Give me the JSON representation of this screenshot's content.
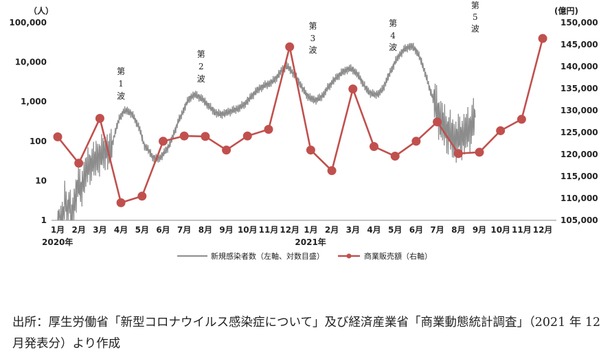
{
  "chart_data": {
    "type": "line",
    "left_unit": "（人）",
    "right_unit": "(億円)",
    "left_axis": {
      "scale": "log",
      "ticks": [
        "1",
        "10",
        "100",
        "1,000",
        "10,000",
        "100,000"
      ],
      "range": [
        1,
        100000
      ]
    },
    "right_axis": {
      "ticks": [
        "105,000",
        "110,000",
        "115,000",
        "120,000",
        "125,000",
        "130,000",
        "135,000",
        "140,000",
        "145,000",
        "150,000"
      ],
      "range": [
        105000,
        150000
      ]
    },
    "month_labels": [
      "1月",
      "2月",
      "3月",
      "4月",
      "5月",
      "6月",
      "7月",
      "8月",
      "9月",
      "10月",
      "11月",
      "12月",
      "1月",
      "2月",
      "3月",
      "4月",
      "5月",
      "6月",
      "7月",
      "8月",
      "9月",
      "10月",
      "11月",
      "12月"
    ],
    "year_labels": [
      {
        "month_index": 0,
        "label": "2020年"
      },
      {
        "month_index": 12,
        "label": "2021年"
      }
    ],
    "series": [
      {
        "name": "新規感染者数（左軸、対数目盛）",
        "axis": "left",
        "color": "#8c8c8c",
        "anchors": [
          [
            0,
            1
          ],
          [
            0.25,
            1
          ],
          [
            0.35,
            4
          ],
          [
            0.45,
            1.5
          ],
          [
            0.55,
            3
          ],
          [
            0.65,
            1
          ],
          [
            0.8,
            3
          ],
          [
            0.95,
            8
          ],
          [
            1.1,
            6
          ],
          [
            1.3,
            15
          ],
          [
            1.5,
            25
          ],
          [
            1.7,
            30
          ],
          [
            1.9,
            40
          ],
          [
            2.1,
            45
          ],
          [
            2.3,
            60
          ],
          [
            2.5,
            55
          ],
          [
            2.7,
            150
          ],
          [
            2.9,
            350
          ],
          [
            3.1,
            550
          ],
          [
            3.3,
            600
          ],
          [
            3.5,
            500
          ],
          [
            3.7,
            330
          ],
          [
            3.9,
            200
          ],
          [
            4.0,
            120
          ],
          [
            4.1,
            80
          ],
          [
            4.3,
            60
          ],
          [
            4.5,
            40
          ],
          [
            4.7,
            35
          ],
          [
            4.9,
            40
          ],
          [
            5.1,
            55
          ],
          [
            5.3,
            80
          ],
          [
            5.5,
            150
          ],
          [
            5.7,
            300
          ],
          [
            5.9,
            500
          ],
          [
            6.1,
            900
          ],
          [
            6.3,
            1300
          ],
          [
            6.5,
            1500
          ],
          [
            6.7,
            1350
          ],
          [
            6.9,
            1100
          ],
          [
            7.1,
            850
          ],
          [
            7.3,
            650
          ],
          [
            7.5,
            520
          ],
          [
            7.7,
            480
          ],
          [
            7.9,
            500
          ],
          [
            8.1,
            550
          ],
          [
            8.3,
            600
          ],
          [
            8.5,
            650
          ],
          [
            8.7,
            750
          ],
          [
            8.9,
            900
          ],
          [
            9.1,
            1200
          ],
          [
            9.3,
            1600
          ],
          [
            9.5,
            2000
          ],
          [
            9.7,
            2400
          ],
          [
            9.9,
            2700
          ],
          [
            10.1,
            3000
          ],
          [
            10.3,
            3600
          ],
          [
            10.5,
            5000
          ],
          [
            10.7,
            7000
          ],
          [
            10.85,
            8000
          ],
          [
            11.0,
            6800
          ],
          [
            11.2,
            5000
          ],
          [
            11.4,
            3500
          ],
          [
            11.6,
            2200
          ],
          [
            11.8,
            1500
          ],
          [
            12.0,
            1200
          ],
          [
            12.2,
            1100
          ],
          [
            12.4,
            1200
          ],
          [
            12.6,
            1500
          ],
          [
            12.8,
            2200
          ],
          [
            13.0,
            3000
          ],
          [
            13.2,
            4000
          ],
          [
            13.4,
            5000
          ],
          [
            13.6,
            6000
          ],
          [
            13.8,
            6800
          ],
          [
            14.0,
            6500
          ],
          [
            14.2,
            5000
          ],
          [
            14.4,
            3500
          ],
          [
            14.6,
            2200
          ],
          [
            14.8,
            1700
          ],
          [
            15.0,
            1500
          ],
          [
            15.2,
            1600
          ],
          [
            15.4,
            2000
          ],
          [
            15.6,
            3500
          ],
          [
            15.8,
            6000
          ],
          [
            16.0,
            10000
          ],
          [
            16.2,
            15000
          ],
          [
            16.4,
            20000
          ],
          [
            16.6,
            24000
          ],
          [
            16.8,
            25000
          ],
          [
            17.0,
            20000
          ],
          [
            17.2,
            12000
          ],
          [
            17.4,
            6000
          ],
          [
            17.6,
            2500
          ],
          [
            17.8,
            1200
          ],
          [
            18.0,
            600
          ],
          [
            18.2,
            300
          ],
          [
            18.4,
            200
          ],
          [
            18.6,
            150
          ],
          [
            18.8,
            110
          ],
          [
            19.0,
            120
          ],
          [
            19.2,
            140
          ],
          [
            19.4,
            170
          ],
          [
            19.6,
            240
          ],
          [
            19.8,
            400
          ]
        ]
      },
      {
        "name": "商業販売額（右軸）",
        "axis": "right",
        "color": "#c0504d",
        "points": [
          [
            0,
            124000
          ],
          [
            1,
            118000
          ],
          [
            2,
            128200
          ],
          [
            3,
            109000
          ],
          [
            4,
            110500
          ],
          [
            5,
            123000
          ],
          [
            6,
            124200
          ],
          [
            7,
            124100
          ],
          [
            8,
            121000
          ],
          [
            9,
            124200
          ],
          [
            10,
            125700
          ],
          [
            11,
            144500
          ],
          [
            12,
            121000
          ],
          [
            13,
            116300
          ],
          [
            14,
            134900
          ],
          [
            15,
            121800
          ],
          [
            16,
            119600
          ],
          [
            17,
            123000
          ],
          [
            18,
            127400
          ],
          [
            19,
            120200
          ],
          [
            20,
            120500
          ],
          [
            21,
            125400
          ],
          [
            22,
            128000
          ],
          [
            23,
            146400
          ]
        ]
      }
    ],
    "annotations": [
      {
        "month": 3.0,
        "lines": [
          "第",
          "1",
          "波"
        ]
      },
      {
        "month": 6.8,
        "lines": [
          "第",
          "2",
          "波"
        ]
      },
      {
        "month": 12.1,
        "lines": [
          "第",
          "3",
          "波"
        ]
      },
      {
        "month": 15.9,
        "lines": [
          "第",
          "4",
          "波"
        ]
      },
      {
        "month": 19.8,
        "lines": [
          "第",
          "5",
          "波"
        ]
      }
    ]
  },
  "source_text": "出所：厚生労働省「新型コロナウイルス感染症について」及び経済産業省「商業動態統計調査」（2021 年 12 月発表分）より作成"
}
